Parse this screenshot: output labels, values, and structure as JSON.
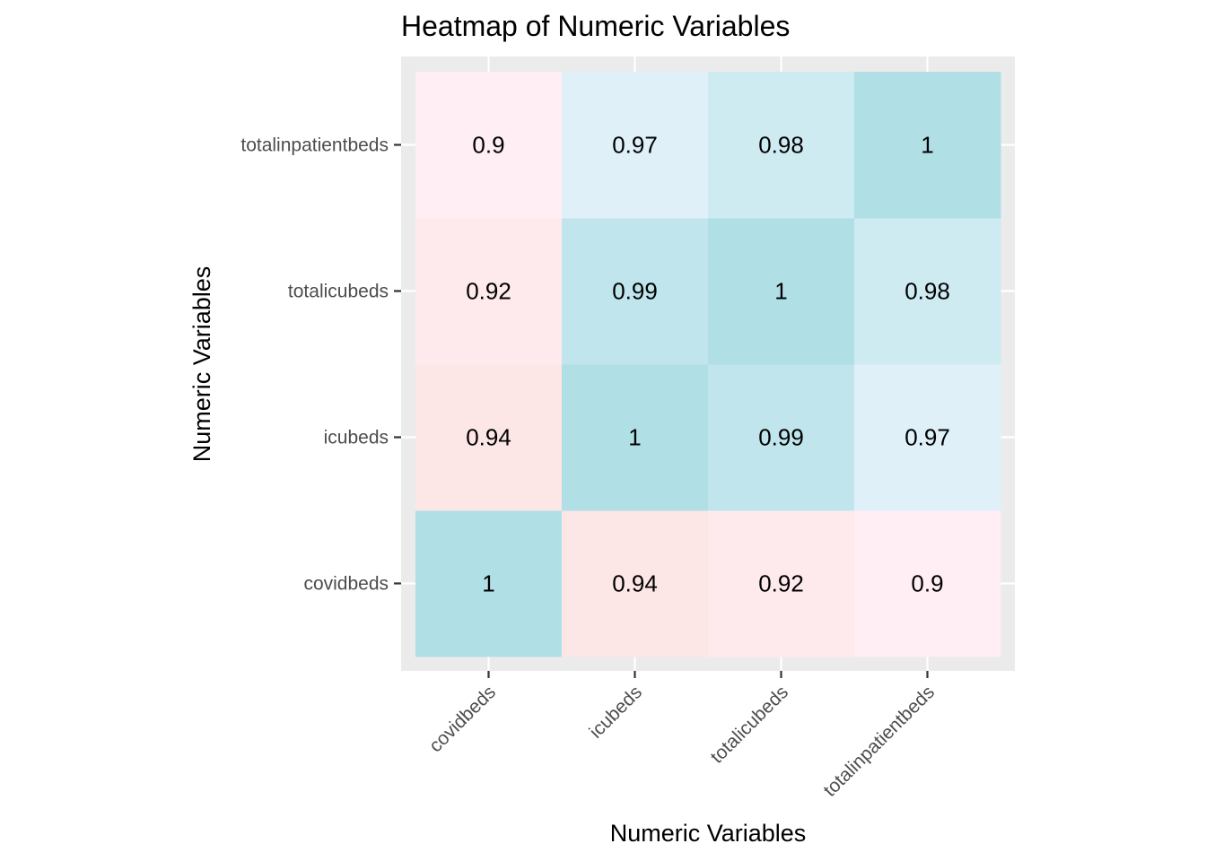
{
  "chart_data": {
    "type": "heatmap",
    "title": "Heatmap of Numeric Variables",
    "xlabel": "Numeric Variables",
    "ylabel": "Numeric Variables",
    "x_categories": [
      "covidbeds",
      "icubeds",
      "totalicubeds",
      "totalinpatientbeds"
    ],
    "y_categories": [
      "covidbeds",
      "icubeds",
      "totalicubeds",
      "totalinpatientbeds"
    ],
    "values": [
      [
        1,
        0.94,
        0.92,
        0.9
      ],
      [
        0.94,
        1,
        0.99,
        0.97
      ],
      [
        0.92,
        0.99,
        1,
        0.98
      ],
      [
        0.9,
        0.97,
        0.98,
        1
      ]
    ],
    "value_range": [
      0.9,
      1
    ],
    "color_scale": {
      "low": "#ffeef4",
      "mid_low": "#fde6e6",
      "mid_high": "#eef6ff",
      "high": "#b0dfe5"
    },
    "panel_background": "#ebebeb",
    "grid": true,
    "legend": "none"
  }
}
